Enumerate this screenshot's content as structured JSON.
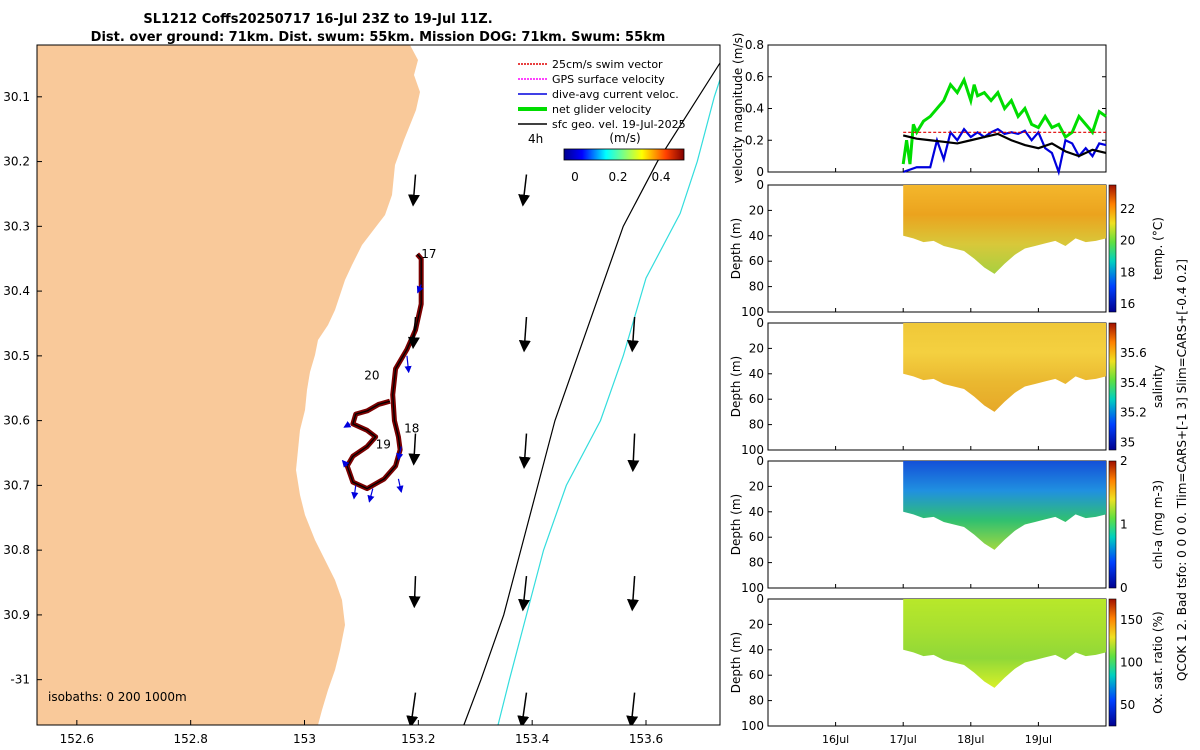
{
  "title": {
    "line1": "SL1212 Coffs20250717 16-Jul 23Z to 19-Jul 11Z.",
    "line2": "Dist. over ground: 71km. Dist. swum: 55km. Mission DOG: 71km. Swum: 55km"
  },
  "colors": {
    "land": "#f9c99a",
    "glider_track": "#7a0000",
    "isobath_200": "#000000",
    "isobath_1000": "#33dddd",
    "swim_vector": "#e00000",
    "gps_velocity": "#ff00ff",
    "dive_current": "#0000dd",
    "net_velocity": "#00dd00",
    "geo_velocity": "#000000"
  },
  "chart_data": [
    {
      "type": "map",
      "name": "glider track map",
      "xlim": [
        152.53,
        153.73
      ],
      "ylim": [
        -31.07,
        -30.02
      ],
      "xticks": [
        152.6,
        152.8,
        153,
        153.2,
        153.4,
        153.6
      ],
      "xtick_labels": [
        "152.6",
        "152.8",
        "153",
        "153.2",
        "153.4",
        "153.6"
      ],
      "yticks": [
        -30.1,
        -30.2,
        -30.3,
        -30.4,
        -30.5,
        -30.6,
        -30.7,
        -30.8,
        -30.9,
        -31
      ],
      "ytick_labels": [
        "30.1",
        "30.2",
        "30.3",
        "30.4",
        "30.5",
        "30.6",
        "30.7",
        "30.8",
        "30.9",
        "-31"
      ],
      "legend": [
        {
          "label": "25cm/s swim vector",
          "color": "#e00000",
          "style": "dotted"
        },
        {
          "label": "GPS surface velocity",
          "color": "#ff00ff",
          "style": "dotted"
        },
        {
          "label": "dive-avg current veloc.",
          "color": "#0000dd",
          "style": "solid"
        },
        {
          "label": "net glider velocity",
          "color": "#00dd00",
          "style": "thick"
        },
        {
          "label": "sfc geo. vel. 19-Jul-2025",
          "color": "#000000",
          "style": "solid"
        }
      ],
      "legend_position": "top-right",
      "geo_scale_label": "4h",
      "colorbar": {
        "title": "(m/s)",
        "ticks": [
          0,
          0.2,
          0.4
        ],
        "tick_labels": [
          "0",
          "0.2",
          "0.4"
        ],
        "range": [
          -0.05,
          0.5
        ]
      },
      "isobaths_label": "isobaths: 0   200   1000m",
      "day_labels": [
        {
          "text": "17",
          "lon": 153.205,
          "lat": -30.343
        },
        {
          "text": "18",
          "lon": 153.175,
          "lat": -30.612
        },
        {
          "text": "19",
          "lon": 153.125,
          "lat": -30.637
        },
        {
          "text": "20",
          "lon": 153.105,
          "lat": -30.53
        }
      ],
      "track": [
        [
          153.198,
          -30.343
        ],
        [
          153.205,
          -30.35
        ],
        [
          153.205,
          -30.38
        ],
        [
          153.205,
          -30.42
        ],
        [
          153.195,
          -30.46
        ],
        [
          153.18,
          -30.49
        ],
        [
          153.16,
          -30.52
        ],
        [
          153.155,
          -30.56
        ],
        [
          153.158,
          -30.6
        ],
        [
          153.165,
          -30.625
        ],
        [
          153.168,
          -30.645
        ],
        [
          153.16,
          -30.67
        ],
        [
          153.14,
          -30.69
        ],
        [
          153.11,
          -30.705
        ],
        [
          153.085,
          -30.695
        ],
        [
          153.075,
          -30.67
        ],
        [
          153.085,
          -30.655
        ],
        [
          153.11,
          -30.64
        ],
        [
          153.125,
          -30.625
        ],
        [
          153.11,
          -30.615
        ],
        [
          153.085,
          -30.605
        ],
        [
          153.09,
          -30.59
        ],
        [
          153.11,
          -30.585
        ],
        [
          153.13,
          -30.575
        ],
        [
          153.15,
          -30.57
        ]
      ],
      "isobath_200": [
        [
          153.75,
          -30.02
        ],
        [
          153.62,
          -30.2
        ],
        [
          153.56,
          -30.3
        ],
        [
          153.52,
          -30.4
        ],
        [
          153.48,
          -30.5
        ],
        [
          153.44,
          -30.6
        ],
        [
          153.41,
          -30.7
        ],
        [
          153.38,
          -30.8
        ],
        [
          153.35,
          -30.9
        ],
        [
          153.31,
          -31.0
        ],
        [
          153.28,
          -31.07
        ]
      ],
      "isobath_1000": [
        [
          153.75,
          -30.02
        ],
        [
          153.72,
          -30.1
        ],
        [
          153.69,
          -30.2
        ],
        [
          153.66,
          -30.28
        ],
        [
          153.6,
          -30.38
        ],
        [
          153.56,
          -30.5
        ],
        [
          153.52,
          -30.6
        ],
        [
          153.46,
          -30.7
        ],
        [
          153.42,
          -30.8
        ],
        [
          153.39,
          -30.9
        ],
        [
          153.36,
          -31.0
        ],
        [
          153.34,
          -31.07
        ]
      ],
      "geo_vectors": [
        {
          "lon": 153.195,
          "lat": -30.22,
          "u": -0.004,
          "v": -0.045
        },
        {
          "lon": 153.39,
          "lat": -30.22,
          "u": -0.006,
          "v": -0.045
        },
        {
          "lon": 153.195,
          "lat": -30.44,
          "u": -0.004,
          "v": -0.045
        },
        {
          "lon": 153.39,
          "lat": -30.44,
          "u": -0.004,
          "v": -0.05
        },
        {
          "lon": 153.58,
          "lat": -30.44,
          "u": -0.004,
          "v": -0.05
        },
        {
          "lon": 153.195,
          "lat": -30.62,
          "u": -0.003,
          "v": -0.045
        },
        {
          "lon": 153.39,
          "lat": -30.62,
          "u": -0.004,
          "v": -0.05
        },
        {
          "lon": 153.58,
          "lat": -30.62,
          "u": -0.003,
          "v": -0.055
        },
        {
          "lon": 153.195,
          "lat": -30.84,
          "u": -0.002,
          "v": -0.045
        },
        {
          "lon": 153.39,
          "lat": -30.84,
          "u": -0.006,
          "v": -0.05
        },
        {
          "lon": 153.58,
          "lat": -30.84,
          "u": -0.004,
          "v": -0.05
        },
        {
          "lon": 153.195,
          "lat": -31.02,
          "u": -0.008,
          "v": -0.05
        },
        {
          "lon": 153.39,
          "lat": -31.02,
          "u": -0.008,
          "v": -0.05
        },
        {
          "lon": 153.58,
          "lat": -31.02,
          "u": -0.006,
          "v": -0.05
        }
      ],
      "current_vectors": [
        {
          "lon": 153.18,
          "lat": -30.5,
          "u": 0.003,
          "v": -0.025
        },
        {
          "lon": 153.17,
          "lat": -30.64,
          "u": -0.005,
          "v": -0.02
        },
        {
          "lon": 153.165,
          "lat": -30.69,
          "u": 0.005,
          "v": -0.02
        },
        {
          "lon": 153.12,
          "lat": -30.705,
          "u": -0.006,
          "v": -0.02
        },
        {
          "lon": 153.09,
          "lat": -30.7,
          "u": -0.003,
          "v": -0.02
        },
        {
          "lon": 153.075,
          "lat": -30.67,
          "u": -0.008,
          "v": 0.008
        },
        {
          "lon": 153.08,
          "lat": -30.605,
          "u": -0.01,
          "v": -0.005
        },
        {
          "lon": 153.205,
          "lat": -30.39,
          "u": -0.006,
          "v": -0.012
        }
      ]
    },
    {
      "type": "line",
      "name": "velocity magnitude",
      "ylabel": "velocity magnitude (m/s)",
      "xlim": [
        0,
        5
      ],
      "ylim": [
        0,
        0.8
      ],
      "yticks": [
        0,
        0.2,
        0.4,
        0.6,
        0.8
      ],
      "ytick_labels": [
        "0",
        "0.2",
        "0.4",
        "0.6",
        "0.8"
      ],
      "series": [
        {
          "name": "net glider velocity",
          "color": "#00dd00",
          "x": [
            2.0,
            2.05,
            2.1,
            2.15,
            2.2,
            2.3,
            2.4,
            2.5,
            2.6,
            2.7,
            2.8,
            2.9,
            3.0,
            3.05,
            3.1,
            3.2,
            3.3,
            3.4,
            3.5,
            3.6,
            3.7,
            3.8,
            3.9,
            4.0,
            4.1,
            4.2,
            4.3,
            4.4,
            4.5,
            4.6,
            4.7,
            4.8,
            4.9,
            5.0
          ],
          "y": [
            0.05,
            0.2,
            0.05,
            0.3,
            0.25,
            0.32,
            0.35,
            0.4,
            0.45,
            0.55,
            0.5,
            0.58,
            0.45,
            0.55,
            0.48,
            0.5,
            0.45,
            0.5,
            0.4,
            0.45,
            0.35,
            0.4,
            0.3,
            0.28,
            0.35,
            0.28,
            0.3,
            0.22,
            0.25,
            0.35,
            0.3,
            0.25,
            0.38,
            0.35
          ]
        },
        {
          "name": "dive-avg current veloc.",
          "color": "#0000dd",
          "x": [
            2.0,
            2.2,
            2.4,
            2.5,
            2.6,
            2.7,
            2.8,
            2.9,
            3.0,
            3.1,
            3.2,
            3.3,
            3.4,
            3.5,
            3.6,
            3.7,
            3.8,
            3.9,
            4.0,
            4.1,
            4.2,
            4.3,
            4.4,
            4.5,
            4.6,
            4.7,
            4.8,
            4.9,
            5.0
          ],
          "y": [
            0.0,
            0.03,
            0.03,
            0.2,
            0.08,
            0.25,
            0.2,
            0.27,
            0.22,
            0.25,
            0.22,
            0.25,
            0.27,
            0.24,
            0.25,
            0.24,
            0.26,
            0.2,
            0.25,
            0.15,
            0.12,
            0.0,
            0.2,
            0.18,
            0.1,
            0.15,
            0.1,
            0.18,
            0.17
          ]
        },
        {
          "name": "sfc geo. vel.",
          "color": "#000000",
          "x": [
            2.0,
            2.2,
            2.4,
            2.6,
            2.8,
            3.0,
            3.2,
            3.4,
            3.6,
            3.8,
            4.0,
            4.2,
            4.4,
            4.6,
            4.8,
            5.0
          ],
          "y": [
            0.23,
            0.21,
            0.2,
            0.19,
            0.18,
            0.2,
            0.22,
            0.24,
            0.2,
            0.17,
            0.15,
            0.18,
            0.13,
            0.1,
            0.14,
            0.12
          ]
        },
        {
          "name": "25cm/s swim vector",
          "color": "#e00000",
          "dashed": true,
          "x": [
            2.0,
            5.0
          ],
          "y": [
            0.25,
            0.25
          ]
        }
      ]
    },
    {
      "type": "heatmap",
      "name": "temperature section",
      "ylabel": "Depth (m)",
      "clabel": "temp. (°C)",
      "clim": [
        15.5,
        23.5
      ],
      "cticks": [
        "16",
        "18",
        "20",
        "22"
      ],
      "yticks": [
        "0",
        "20",
        "40",
        "60",
        "80",
        "100"
      ],
      "ylim": [
        0,
        100
      ],
      "data_xlim": [
        2.0,
        5.0
      ],
      "depth_profile": [
        40,
        42,
        45,
        44,
        48,
        50,
        52,
        58,
        65,
        70,
        62,
        55,
        50,
        48,
        46,
        44,
        48,
        42,
        45,
        44,
        42
      ],
      "colormap": "parula"
    },
    {
      "type": "heatmap",
      "name": "salinity section",
      "ylabel": "Depth (m)",
      "clabel": "salinity",
      "clim": [
        34.95,
        35.8
      ],
      "cticks": [
        "35",
        "35.2",
        "35.4",
        "35.6"
      ],
      "yticks": [
        "0",
        "20",
        "40",
        "60",
        "80",
        "100"
      ],
      "ylim": [
        0,
        100
      ],
      "data_xlim": [
        2.0,
        5.0
      ],
      "depth_profile": [
        40,
        42,
        45,
        44,
        48,
        50,
        52,
        58,
        65,
        70,
        62,
        55,
        50,
        48,
        46,
        44,
        48,
        42,
        45,
        44,
        42
      ],
      "colormap": "parula"
    },
    {
      "type": "heatmap",
      "name": "chlorophyll section",
      "ylabel": "Depth (m)",
      "clabel": "chl-a (mg m-3)",
      "clim": [
        0,
        2
      ],
      "cticks": [
        "0",
        "1",
        "2"
      ],
      "yticks": [
        "0",
        "20",
        "40",
        "60",
        "80",
        "100"
      ],
      "ylim": [
        0,
        100
      ],
      "data_xlim": [
        2.0,
        5.0
      ],
      "depth_profile": [
        40,
        42,
        45,
        44,
        48,
        50,
        52,
        58,
        65,
        70,
        62,
        55,
        50,
        48,
        46,
        44,
        48,
        42,
        45,
        44,
        42
      ],
      "colormap": "parula"
    },
    {
      "type": "heatmap",
      "name": "oxygen saturation section",
      "ylabel": "Depth (m)",
      "clabel": "Ox. sat. ratio (%)",
      "clim": [
        25,
        175
      ],
      "cticks": [
        "50",
        "100",
        "150"
      ],
      "yticks": [
        "0",
        "20",
        "40",
        "60",
        "80",
        "100"
      ],
      "ylim": [
        0,
        100
      ],
      "data_xlim": [
        2.0,
        5.0
      ],
      "depth_profile": [
        40,
        42,
        45,
        44,
        48,
        50,
        52,
        58,
        65,
        70,
        62,
        55,
        50,
        48,
        46,
        44,
        48,
        42,
        45,
        44,
        42
      ],
      "colormap": "parula"
    }
  ],
  "time_axis": {
    "ticks": [
      1,
      2,
      3,
      4
    ],
    "labels": [
      "16Jul",
      "17Jul",
      "18Jul",
      "19Jul"
    ]
  },
  "side_note": "QCOK 1  2. Bad tsfo: 0  0  0  0. Tlim=CARS+[-1 3] Slim=CARS+[-0.4 0.2]"
}
